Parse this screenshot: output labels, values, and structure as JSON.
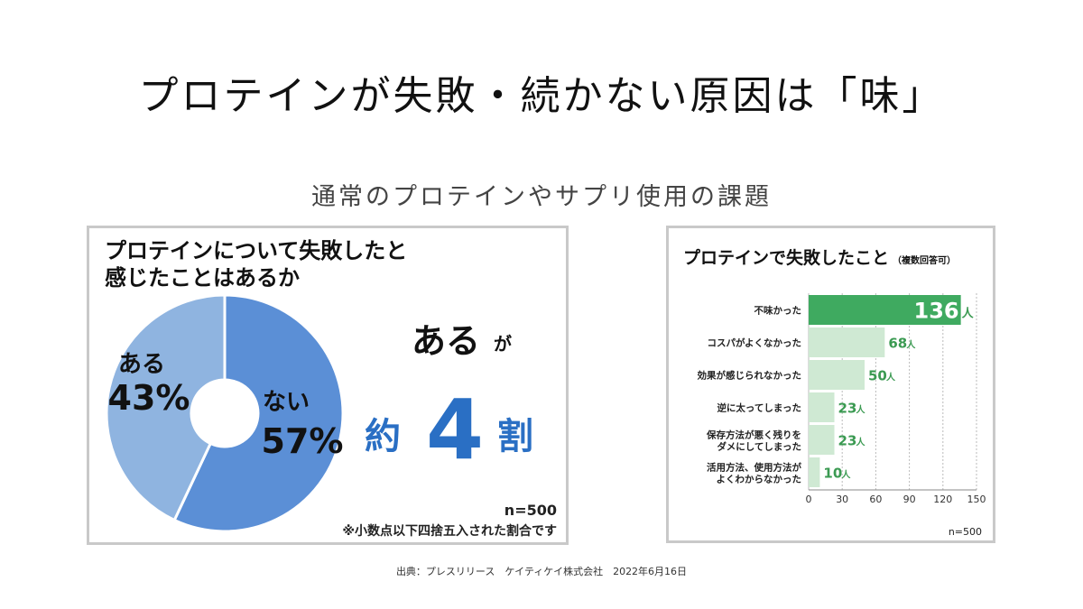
{
  "slide": {
    "title": "プロテインが失敗・続かない原因は「味」",
    "subtitle": "通常のプロテインやサプリ使用の課題",
    "credit": "出典：プレスリリース　ケイティケイ株式会社　2022年6月16日"
  },
  "left_panel": {
    "title_line1": "プロテインについて失敗したと",
    "title_line2": "感じたことはあるか",
    "callout_word": "ある",
    "callout_particle": "が",
    "callout_prefix": "約",
    "callout_number": "4",
    "callout_suffix": "割",
    "n_label": "n=500",
    "footnote": "※小数点以下四捨五入された割合です"
  },
  "right_panel": {
    "title": "プロテインで失敗したこと",
    "title_note": "（複数回答可）",
    "n_label": "n=500"
  },
  "colors": {
    "donut_yes": "#8fb4e0",
    "donut_no": "#5b8fd6",
    "callout_blue": "#2a6fc4",
    "bar_top": "#3faa60",
    "bar_other": "#cfe9d3",
    "bar_text": "#3b9a52"
  },
  "chart_data": [
    {
      "type": "pie",
      "title": "プロテインについて失敗したと感じたことはあるか",
      "slices": [
        {
          "label": "ない",
          "value": 57,
          "display": "57%"
        },
        {
          "label": "ある",
          "value": 43,
          "display": "43%"
        }
      ],
      "n": "n=500"
    },
    {
      "type": "bar",
      "orientation": "horizontal",
      "title": "プロテインで失敗したこと",
      "categories": [
        [
          "不味かった"
        ],
        [
          "コスパがよくなかった"
        ],
        [
          "効果が感じられなかった"
        ],
        [
          "逆に太ってしまった"
        ],
        [
          "保存方法が悪く残りを",
          "ダメにしてしまった"
        ],
        [
          "活用方法、使用方法が",
          "よくわからなかった"
        ]
      ],
      "values": [
        136,
        68,
        50,
        23,
        23,
        10
      ],
      "unit": "人",
      "xlim": [
        0,
        150
      ],
      "xticks": [
        0,
        30,
        60,
        90,
        120,
        150
      ],
      "grid": true
    }
  ]
}
